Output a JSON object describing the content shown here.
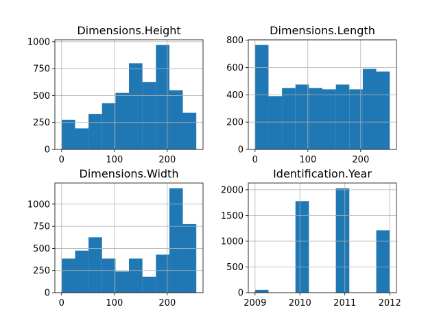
{
  "chart_data": [
    {
      "type": "bar",
      "title": "Dimensions.Height",
      "bin_edges": [
        0,
        25.5,
        51,
        76.5,
        102,
        127.5,
        153,
        178.5,
        204,
        229.5,
        255
      ],
      "values": [
        275,
        195,
        330,
        430,
        525,
        800,
        625,
        970,
        550,
        340
      ],
      "xlim": [
        -12.75,
        267.75
      ],
      "ylim": [
        0,
        1018.5
      ],
      "xticks": [
        0,
        100,
        200
      ],
      "yticks": [
        0,
        250,
        500,
        750,
        1000
      ],
      "color": "#1f77b4",
      "grid": true
    },
    {
      "type": "bar",
      "title": "Dimensions.Length",
      "bin_edges": [
        0,
        25.5,
        51,
        76.5,
        102,
        127.5,
        153,
        178.5,
        204,
        229.5,
        255
      ],
      "values": [
        765,
        390,
        450,
        475,
        450,
        440,
        475,
        440,
        590,
        570
      ],
      "xlim": [
        -12.75,
        267.75
      ],
      "ylim": [
        0,
        803.25
      ],
      "xticks": [
        0,
        100,
        200
      ],
      "yticks": [
        0,
        200,
        400,
        600,
        800
      ],
      "color": "#1f77b4",
      "grid": true
    },
    {
      "type": "bar",
      "title": "Dimensions.Width",
      "bin_edges": [
        0,
        25.5,
        51,
        76.5,
        102,
        127.5,
        153,
        178.5,
        204,
        229.5,
        255
      ],
      "values": [
        385,
        475,
        625,
        385,
        240,
        385,
        180,
        430,
        1180,
        775
      ],
      "xlim": [
        -12.75,
        267.75
      ],
      "ylim": [
        0,
        1239
      ],
      "xticks": [
        0,
        100,
        200
      ],
      "yticks": [
        0,
        250,
        500,
        750,
        1000
      ],
      "color": "#1f77b4",
      "grid": true
    },
    {
      "type": "bar",
      "title": "Identification.Year",
      "bin_edges": [
        2009,
        2009.3,
        2009.6,
        2009.9,
        2010.2,
        2010.5,
        2010.8,
        2011.1,
        2011.4,
        2011.7,
        2012
      ],
      "values": [
        55,
        0,
        0,
        1780,
        0,
        0,
        2030,
        0,
        0,
        1210
      ],
      "xlim": [
        2008.85,
        2012.15
      ],
      "ylim": [
        0,
        2131.5
      ],
      "xticks": [
        2009,
        2010,
        2011,
        2012
      ],
      "yticks": [
        0,
        500,
        1000,
        1500,
        2000
      ],
      "color": "#1f77b4",
      "grid": true
    }
  ]
}
